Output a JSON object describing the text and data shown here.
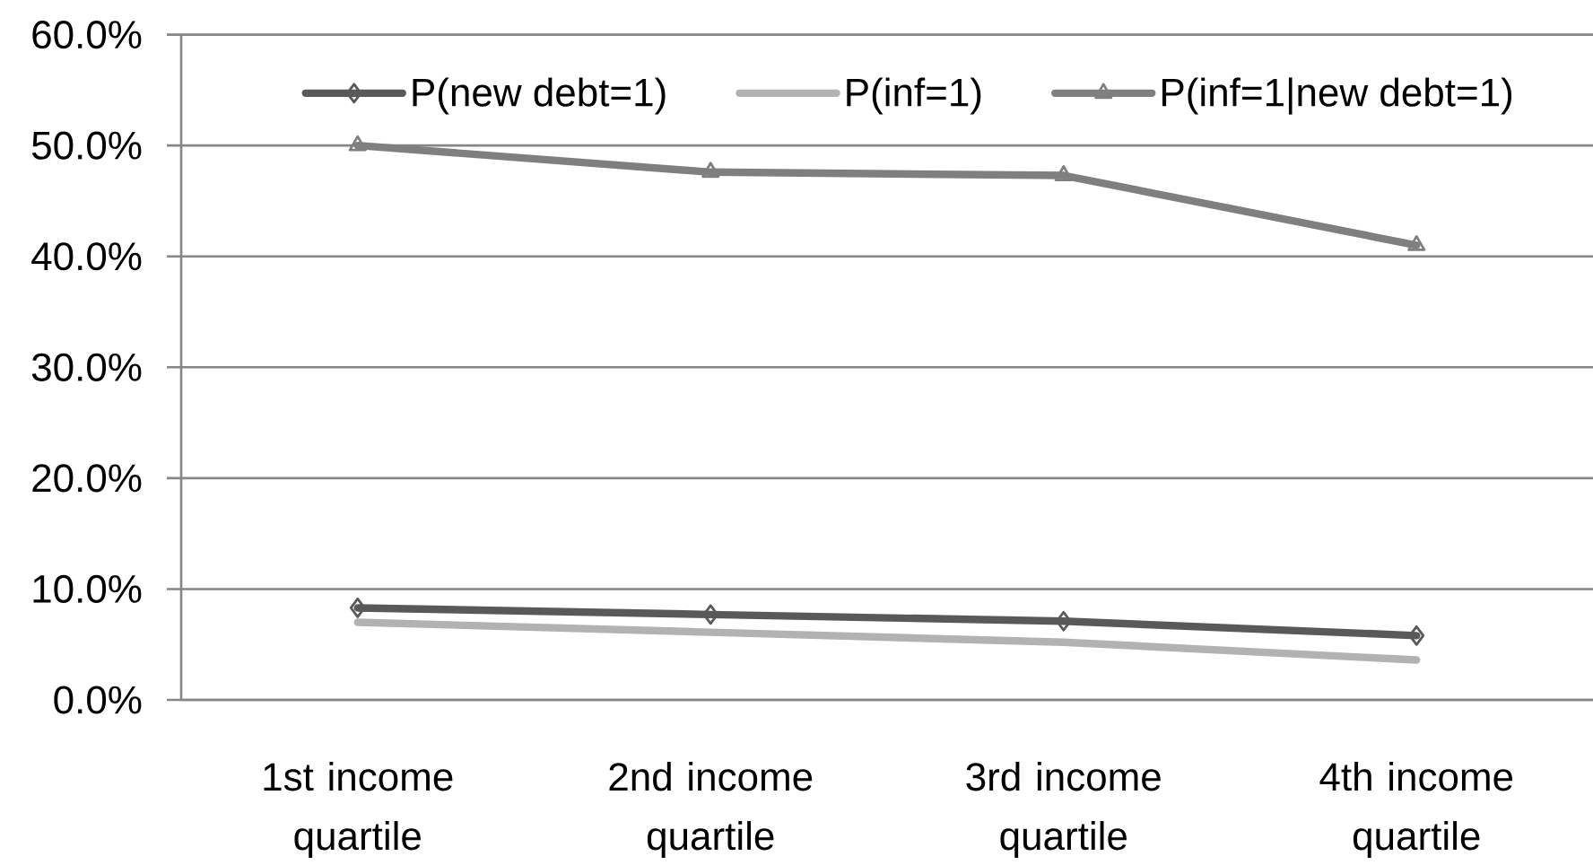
{
  "chart_data": {
    "type": "line",
    "categories": [
      "1st income quartile",
      "2nd income quartile",
      "3rd income quartile",
      "4th income quartile"
    ],
    "series": [
      {
        "name": "P(new debt=1)",
        "color": "#595959",
        "marker": "diamond",
        "values": [
          8.3,
          7.7,
          7.1,
          5.8
        ]
      },
      {
        "name": "P(inf=1)",
        "color": "#b2b2b2",
        "marker": "none",
        "values": [
          7.0,
          6.1,
          5.2,
          3.6
        ]
      },
      {
        "name": "P(inf=1|new debt=1)",
        "color": "#7f7f7f",
        "marker": "triangle",
        "values": [
          50.0,
          47.6,
          47.3,
          41.0
        ]
      }
    ],
    "ylim": [
      0,
      60
    ],
    "yticks": [
      {
        "value": 0,
        "label": "0.0%"
      },
      {
        "value": 10,
        "label": "10.0%"
      },
      {
        "value": 20,
        "label": "20.0%"
      },
      {
        "value": 30,
        "label": "30.0%"
      },
      {
        "value": 40,
        "label": "40.0%"
      },
      {
        "value": 50,
        "label": "50.0%"
      },
      {
        "value": 60,
        "label": "60.0%"
      }
    ],
    "grid": "y",
    "legend": "top",
    "line_style": "solid"
  }
}
